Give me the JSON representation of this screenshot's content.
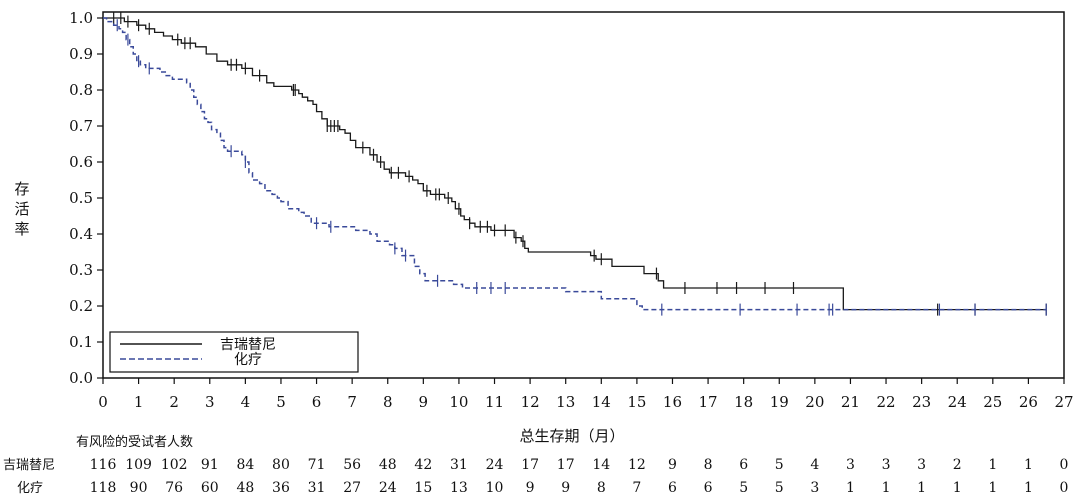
{
  "chart_data": {
    "type": "line",
    "subtype": "kaplan-meier",
    "title": "",
    "xlabel": "总生存期（月）",
    "ylabel": "存活率",
    "xlim": [
      0,
      27
    ],
    "ylim": [
      0,
      1.0
    ],
    "xticks": [
      0,
      1,
      2,
      3,
      4,
      5,
      6,
      7,
      8,
      9,
      10,
      11,
      12,
      13,
      14,
      15,
      16,
      17,
      18,
      19,
      20,
      21,
      22,
      23,
      24,
      25,
      26,
      27
    ],
    "yticks": [
      0.0,
      0.1,
      0.2,
      0.3,
      0.4,
      0.5,
      0.6,
      0.7,
      0.8,
      0.9,
      1.0
    ],
    "grid": false,
    "legend": {
      "placement": "bottom-left",
      "boxed": true
    },
    "series": [
      {
        "name": "吉瑞替尼",
        "color": "#1a1a1a",
        "line_style": "solid",
        "steps": [
          [
            0,
            1.0
          ],
          [
            0.6,
            0.99
          ],
          [
            0.95,
            0.98
          ],
          [
            1.2,
            0.97
          ],
          [
            1.45,
            0.96
          ],
          [
            1.7,
            0.95
          ],
          [
            1.95,
            0.94
          ],
          [
            2.2,
            0.93
          ],
          [
            2.6,
            0.92
          ],
          [
            2.9,
            0.9
          ],
          [
            3.2,
            0.88
          ],
          [
            3.5,
            0.87
          ],
          [
            3.9,
            0.86
          ],
          [
            4.2,
            0.84
          ],
          [
            4.6,
            0.82
          ],
          [
            4.8,
            0.81
          ],
          [
            5.3,
            0.8
          ],
          [
            5.5,
            0.79
          ],
          [
            5.6,
            0.78
          ],
          [
            5.75,
            0.77
          ],
          [
            5.9,
            0.76
          ],
          [
            6.0,
            0.74
          ],
          [
            6.15,
            0.72
          ],
          [
            6.3,
            0.7
          ],
          [
            6.65,
            0.69
          ],
          [
            6.8,
            0.68
          ],
          [
            6.95,
            0.66
          ],
          [
            7.1,
            0.64
          ],
          [
            7.5,
            0.62
          ],
          [
            7.7,
            0.6
          ],
          [
            7.9,
            0.58
          ],
          [
            8.05,
            0.57
          ],
          [
            8.5,
            0.56
          ],
          [
            8.7,
            0.55
          ],
          [
            8.85,
            0.54
          ],
          [
            9.0,
            0.52
          ],
          [
            9.2,
            0.51
          ],
          [
            9.6,
            0.5
          ],
          [
            9.8,
            0.49
          ],
          [
            9.9,
            0.47
          ],
          [
            10.05,
            0.45
          ],
          [
            10.15,
            0.44
          ],
          [
            10.3,
            0.43
          ],
          [
            10.45,
            0.42
          ],
          [
            10.9,
            0.41
          ],
          [
            11.55,
            0.39
          ],
          [
            11.75,
            0.38
          ],
          [
            11.85,
            0.36
          ],
          [
            11.95,
            0.35
          ],
          [
            13.7,
            0.34
          ],
          [
            13.85,
            0.33
          ],
          [
            14.3,
            0.31
          ],
          [
            15.2,
            0.29
          ],
          [
            15.6,
            0.27
          ],
          [
            15.75,
            0.25
          ],
          [
            20.8,
            0.19
          ],
          [
            26.5,
            0.19
          ]
        ],
        "censor": [
          0.3,
          0.5,
          0.7,
          1.0,
          1.3,
          2.1,
          2.3,
          2.45,
          3.6,
          3.75,
          4.0,
          4.4,
          5.35,
          5.4,
          6.3,
          6.4,
          6.5,
          6.6,
          7.3,
          7.6,
          7.8,
          8.1,
          8.3,
          8.6,
          9.1,
          9.35,
          9.45,
          9.7,
          10.0,
          10.3,
          10.6,
          10.8,
          11.0,
          11.3,
          11.6,
          11.8,
          13.8,
          14.0,
          15.55,
          16.35,
          17.25,
          17.8,
          18.6,
          19.4,
          23.45,
          24.5,
          26.5
        ]
      },
      {
        "name": "化疗",
        "color": "#3a4a9a",
        "line_style": "dashed",
        "steps": [
          [
            0,
            1.0
          ],
          [
            0.1,
            0.99
          ],
          [
            0.3,
            0.98
          ],
          [
            0.45,
            0.97
          ],
          [
            0.55,
            0.96
          ],
          [
            0.65,
            0.94
          ],
          [
            0.75,
            0.92
          ],
          [
            0.85,
            0.9
          ],
          [
            0.95,
            0.88
          ],
          [
            1.05,
            0.87
          ],
          [
            1.2,
            0.86
          ],
          [
            1.6,
            0.85
          ],
          [
            1.75,
            0.84
          ],
          [
            1.95,
            0.83
          ],
          [
            2.35,
            0.82
          ],
          [
            2.45,
            0.8
          ],
          [
            2.55,
            0.78
          ],
          [
            2.65,
            0.76
          ],
          [
            2.75,
            0.74
          ],
          [
            2.85,
            0.72
          ],
          [
            2.95,
            0.71
          ],
          [
            3.05,
            0.69
          ],
          [
            3.2,
            0.68
          ],
          [
            3.3,
            0.66
          ],
          [
            3.4,
            0.64
          ],
          [
            3.5,
            0.63
          ],
          [
            3.9,
            0.62
          ],
          [
            4.0,
            0.6
          ],
          [
            4.1,
            0.57
          ],
          [
            4.2,
            0.55
          ],
          [
            4.4,
            0.54
          ],
          [
            4.55,
            0.52
          ],
          [
            4.75,
            0.51
          ],
          [
            4.9,
            0.5
          ],
          [
            5.0,
            0.49
          ],
          [
            5.2,
            0.47
          ],
          [
            5.5,
            0.46
          ],
          [
            5.65,
            0.45
          ],
          [
            5.85,
            0.43
          ],
          [
            6.35,
            0.42
          ],
          [
            6.85,
            0.42
          ],
          [
            7.1,
            0.41
          ],
          [
            7.5,
            0.4
          ],
          [
            7.7,
            0.38
          ],
          [
            8.05,
            0.37
          ],
          [
            8.2,
            0.36
          ],
          [
            8.4,
            0.34
          ],
          [
            8.75,
            0.31
          ],
          [
            8.9,
            0.29
          ],
          [
            9.05,
            0.27
          ],
          [
            9.85,
            0.26
          ],
          [
            10.1,
            0.25
          ],
          [
            13.0,
            0.24
          ],
          [
            14.0,
            0.22
          ],
          [
            15.0,
            0.2
          ],
          [
            15.15,
            0.19
          ],
          [
            20.8,
            0.19
          ],
          [
            26.5,
            0.19
          ]
        ],
        "censor": [
          0.4,
          0.7,
          1.0,
          1.3,
          3.6,
          4.0,
          6.0,
          6.4,
          8.2,
          8.5,
          9.4,
          10.5,
          10.9,
          11.3,
          15.7,
          17.9,
          19.5,
          20.4,
          20.5,
          23.5,
          24.5,
          26.5
        ]
      }
    ],
    "at_risk": {
      "header": "有风险的受试者人数",
      "times": [
        0,
        1,
        2,
        3,
        4,
        5,
        6,
        7,
        8,
        9,
        10,
        11,
        12,
        13,
        14,
        15,
        16,
        17,
        18,
        19,
        20,
        21,
        22,
        23,
        24,
        25,
        26,
        27
      ],
      "rows": [
        {
          "label": "吉瑞替尼",
          "counts": [
            116,
            109,
            102,
            91,
            84,
            80,
            71,
            56,
            48,
            42,
            31,
            24,
            17,
            17,
            14,
            12,
            9,
            8,
            6,
            5,
            4,
            3,
            3,
            3,
            2,
            1,
            1,
            0
          ]
        },
        {
          "label": "化疗",
          "counts": [
            118,
            90,
            76,
            60,
            48,
            36,
            31,
            27,
            24,
            15,
            13,
            10,
            9,
            9,
            8,
            7,
            6,
            6,
            5,
            5,
            3,
            1,
            1,
            1,
            1,
            1,
            1,
            0
          ]
        }
      ]
    }
  }
}
